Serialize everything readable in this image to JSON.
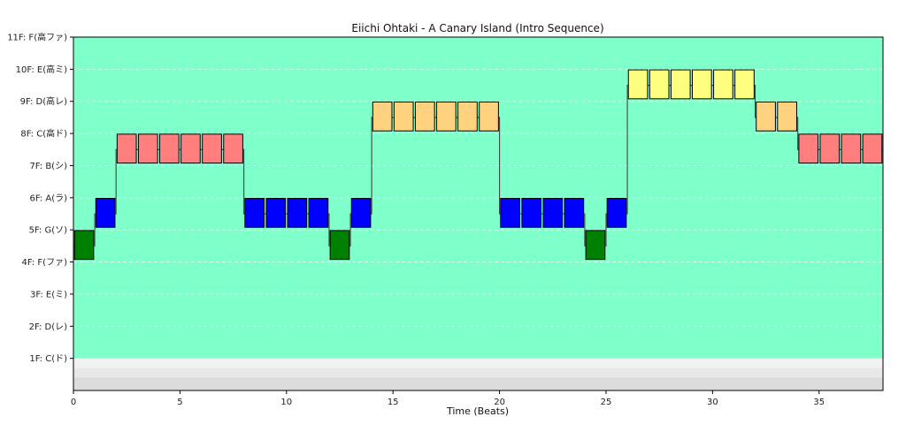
{
  "chart_data": {
    "type": "bar",
    "title": "Eiichi Ohtaki - A Canary Island (Intro Sequence)",
    "xlabel": "Time (Beats)",
    "ylabel": "",
    "xlim": [
      0,
      38
    ],
    "ylim": [
      0,
      11
    ],
    "x_ticks": [
      0,
      5,
      10,
      15,
      20,
      25,
      30,
      35
    ],
    "y_ticks": [
      {
        "value": 1,
        "label": "1F: C(ド)"
      },
      {
        "value": 2,
        "label": "2F: D(レ)"
      },
      {
        "value": 3,
        "label": "3F: E(ミ)"
      },
      {
        "value": 4,
        "label": "4F: F(ファ)"
      },
      {
        "value": 5,
        "label": "5F: G(ソ)"
      },
      {
        "value": 6,
        "label": "6F: A(ラ)"
      },
      {
        "value": 7,
        "label": "7F: B(シ)"
      },
      {
        "value": 8,
        "label": "8F: C(高ド)"
      },
      {
        "value": 9,
        "label": "9F: D(高レ)"
      },
      {
        "value": 10,
        "label": "10F: E(高ミ)"
      },
      {
        "value": 11,
        "label": "11F: F(高ファ)"
      }
    ],
    "grid": true,
    "background": {
      "floor_band_color": "#eeeeee",
      "playfield_color": "#7fffca"
    },
    "colors": {
      "G": "#008000",
      "A": "#0000ff",
      "C_high": "#ff7f7f",
      "D_high": "#ffd27f",
      "E_high": "#ffff7f"
    },
    "notes": [
      {
        "start": 0,
        "floor": 5,
        "color": "G"
      },
      {
        "start": 1,
        "floor": 6,
        "color": "A"
      },
      {
        "start": 2,
        "floor": 8,
        "color": "C_high"
      },
      {
        "start": 3,
        "floor": 8,
        "color": "C_high"
      },
      {
        "start": 4,
        "floor": 8,
        "color": "C_high"
      },
      {
        "start": 5,
        "floor": 8,
        "color": "C_high"
      },
      {
        "start": 6,
        "floor": 8,
        "color": "C_high"
      },
      {
        "start": 7,
        "floor": 8,
        "color": "C_high"
      },
      {
        "start": 8,
        "floor": 6,
        "color": "A"
      },
      {
        "start": 9,
        "floor": 6,
        "color": "A"
      },
      {
        "start": 10,
        "floor": 6,
        "color": "A"
      },
      {
        "start": 11,
        "floor": 6,
        "color": "A"
      },
      {
        "start": 12,
        "floor": 5,
        "color": "G"
      },
      {
        "start": 13,
        "floor": 6,
        "color": "A"
      },
      {
        "start": 14,
        "floor": 9,
        "color": "D_high"
      },
      {
        "start": 15,
        "floor": 9,
        "color": "D_high"
      },
      {
        "start": 16,
        "floor": 9,
        "color": "D_high"
      },
      {
        "start": 17,
        "floor": 9,
        "color": "D_high"
      },
      {
        "start": 18,
        "floor": 9,
        "color": "D_high"
      },
      {
        "start": 19,
        "floor": 9,
        "color": "D_high"
      },
      {
        "start": 20,
        "floor": 6,
        "color": "A"
      },
      {
        "start": 21,
        "floor": 6,
        "color": "A"
      },
      {
        "start": 22,
        "floor": 6,
        "color": "A"
      },
      {
        "start": 23,
        "floor": 6,
        "color": "A"
      },
      {
        "start": 24,
        "floor": 5,
        "color": "G"
      },
      {
        "start": 25,
        "floor": 6,
        "color": "A"
      },
      {
        "start": 26,
        "floor": 10,
        "color": "E_high"
      },
      {
        "start": 27,
        "floor": 10,
        "color": "E_high"
      },
      {
        "start": 28,
        "floor": 10,
        "color": "E_high"
      },
      {
        "start": 29,
        "floor": 10,
        "color": "E_high"
      },
      {
        "start": 30,
        "floor": 10,
        "color": "E_high"
      },
      {
        "start": 31,
        "floor": 10,
        "color": "E_high"
      },
      {
        "start": 32,
        "floor": 9,
        "color": "D_high"
      },
      {
        "start": 33,
        "floor": 9,
        "color": "D_high"
      },
      {
        "start": 34,
        "floor": 8,
        "color": "C_high"
      },
      {
        "start": 35,
        "floor": 8,
        "color": "C_high"
      },
      {
        "start": 36,
        "floor": 8,
        "color": "C_high"
      },
      {
        "start": 37,
        "floor": 8,
        "color": "C_high"
      }
    ]
  }
}
